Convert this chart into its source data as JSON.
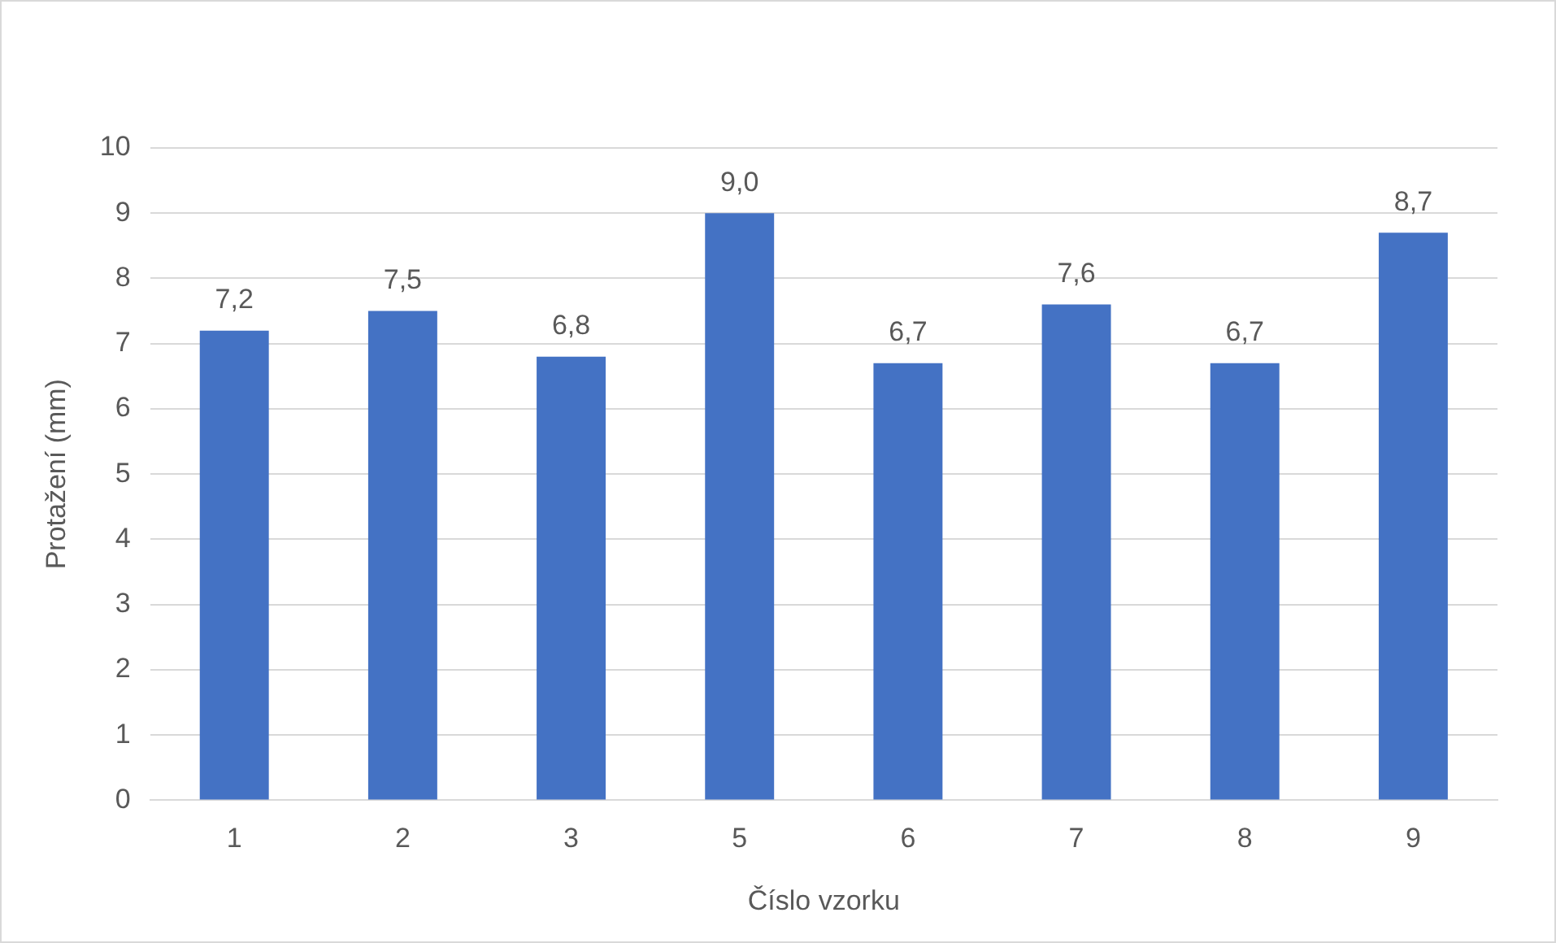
{
  "chart_data": {
    "type": "bar",
    "xlabel": "Číslo vzorku",
    "ylabel": "Protažení (mm)",
    "categories": [
      "1",
      "2",
      "3",
      "5",
      "6",
      "7",
      "8",
      "9"
    ],
    "values": [
      7.2,
      7.5,
      6.8,
      9.0,
      6.7,
      7.6,
      6.7,
      8.7
    ],
    "value_labels": [
      "7,2",
      "7,5",
      "6,8",
      "9,0",
      "6,7",
      "7,6",
      "6,7",
      "8,7"
    ],
    "color": "#4472c4",
    "ylim": [
      0,
      10
    ],
    "yticks": [
      0,
      1,
      2,
      3,
      4,
      5,
      6,
      7,
      8,
      9,
      10
    ],
    "grid": "y",
    "legend": false
  }
}
